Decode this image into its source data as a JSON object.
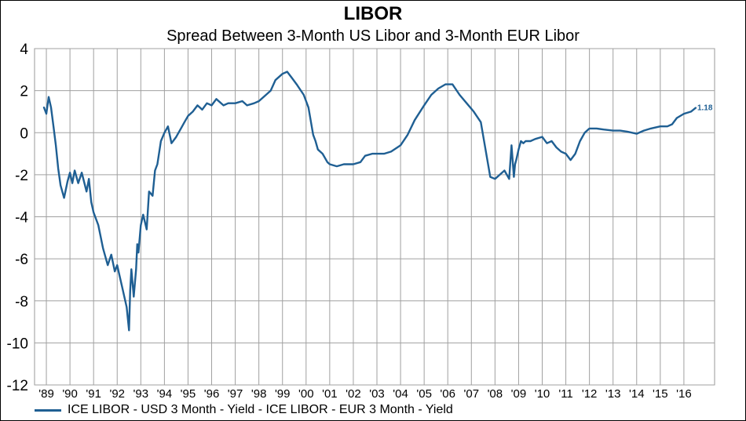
{
  "chart_data": {
    "type": "line",
    "title": "LIBOR",
    "subtitle": "Spread Between 3-Month US Libor and 3-Month EUR Libor",
    "xlabel": "",
    "ylabel": "",
    "ylim": [
      -12,
      4
    ],
    "yticks": [
      4,
      2,
      0,
      -2,
      -4,
      -6,
      -8,
      -10,
      -12
    ],
    "xlim": [
      1988.5,
      2017.3
    ],
    "xticks": [
      {
        "x": 1989,
        "label": "'89"
      },
      {
        "x": 1990,
        "label": "'90"
      },
      {
        "x": 1991,
        "label": "'91"
      },
      {
        "x": 1992,
        "label": "'92"
      },
      {
        "x": 1993,
        "label": "'93"
      },
      {
        "x": 1994,
        "label": "'94"
      },
      {
        "x": 1995,
        "label": "'95"
      },
      {
        "x": 1996,
        "label": "'96"
      },
      {
        "x": 1997,
        "label": "'97"
      },
      {
        "x": 1998,
        "label": "'98"
      },
      {
        "x": 1999,
        "label": "'99"
      },
      {
        "x": 2000,
        "label": "'00"
      },
      {
        "x": 2001,
        "label": "'01"
      },
      {
        "x": 2002,
        "label": "'02"
      },
      {
        "x": 2003,
        "label": "'03"
      },
      {
        "x": 2004,
        "label": "'04"
      },
      {
        "x": 2005,
        "label": "'05"
      },
      {
        "x": 2006,
        "label": "'06"
      },
      {
        "x": 2007,
        "label": "'07"
      },
      {
        "x": 2008,
        "label": "'08"
      },
      {
        "x": 2009,
        "label": "'09"
      },
      {
        "x": 2010,
        "label": "'10"
      },
      {
        "x": 2011,
        "label": "'11"
      },
      {
        "x": 2012,
        "label": "'12"
      },
      {
        "x": 2013,
        "label": "'13"
      },
      {
        "x": 2014,
        "label": "'14"
      },
      {
        "x": 2015,
        "label": "'15"
      },
      {
        "x": 2016,
        "label": "'16"
      }
    ],
    "grid": true,
    "legend_position": "bottom-left",
    "series": [
      {
        "name": "ICE LIBOR - USD 3 Month - Yield - ICE LIBOR - EUR 3 Month - Yield",
        "color": "#1F5F93",
        "last_value_label": "1.18",
        "x": [
          1988.9,
          1989.0,
          1989.1,
          1989.2,
          1989.3,
          1989.4,
          1989.5,
          1989.6,
          1989.75,
          1989.9,
          1990.0,
          1990.1,
          1990.2,
          1990.35,
          1990.5,
          1990.7,
          1990.8,
          1990.9,
          1991.0,
          1991.2,
          1991.4,
          1991.6,
          1991.75,
          1991.9,
          1992.0,
          1992.2,
          1992.4,
          1992.5,
          1992.55,
          1992.6,
          1992.7,
          1992.8,
          1992.85,
          1992.9,
          1993.0,
          1993.1,
          1993.25,
          1993.35,
          1993.5,
          1993.6,
          1993.7,
          1993.85,
          1994.0,
          1994.15,
          1994.3,
          1994.5,
          1994.7,
          1994.85,
          1995.0,
          1995.2,
          1995.4,
          1995.6,
          1995.8,
          1996.0,
          1996.2,
          1996.5,
          1996.7,
          1997.0,
          1997.3,
          1997.5,
          1997.8,
          1998.0,
          1998.3,
          1998.5,
          1998.7,
          1999.0,
          1999.2,
          1999.4,
          1999.6,
          1999.9,
          2000.1,
          2000.3,
          2000.4,
          2000.5,
          2000.7,
          2000.9,
          2001.0,
          2001.3,
          2001.6,
          2002.0,
          2002.3,
          2002.5,
          2002.8,
          2003.0,
          2003.3,
          2003.6,
          2004.0,
          2004.3,
          2004.6,
          2005.0,
          2005.3,
          2005.6,
          2005.9,
          2006.2,
          2006.5,
          2006.8,
          2007.1,
          2007.4,
          2007.6,
          2007.8,
          2008.0,
          2008.2,
          2008.4,
          2008.6,
          2008.7,
          2008.8,
          2008.85,
          2008.9,
          2009.0,
          2009.1,
          2009.2,
          2009.3,
          2009.5,
          2009.7,
          2010.0,
          2010.2,
          2010.4,
          2010.6,
          2010.8,
          2011.0,
          2011.2,
          2011.4,
          2011.6,
          2011.8,
          2012.0,
          2012.3,
          2012.6,
          2013.0,
          2013.3,
          2013.6,
          2014.0,
          2014.3,
          2014.6,
          2015.0,
          2015.3,
          2015.5,
          2015.7,
          2016.0,
          2016.3,
          2016.5
        ],
        "y": [
          1.2,
          0.9,
          1.7,
          1.2,
          0.3,
          -0.6,
          -1.7,
          -2.5,
          -3.1,
          -2.3,
          -1.9,
          -2.4,
          -1.8,
          -2.4,
          -1.9,
          -2.8,
          -2.2,
          -3.3,
          -3.8,
          -4.4,
          -5.5,
          -6.3,
          -5.8,
          -6.6,
          -6.3,
          -7.3,
          -8.3,
          -9.4,
          -7.5,
          -6.5,
          -7.8,
          -6.5,
          -5.3,
          -5.7,
          -4.4,
          -3.9,
          -4.6,
          -2.8,
          -3.0,
          -1.8,
          -1.5,
          -0.4,
          0.0,
          0.3,
          -0.5,
          -0.2,
          0.2,
          0.5,
          0.8,
          1.0,
          1.3,
          1.1,
          1.4,
          1.3,
          1.6,
          1.3,
          1.4,
          1.4,
          1.5,
          1.3,
          1.4,
          1.5,
          1.8,
          2.0,
          2.5,
          2.8,
          2.9,
          2.6,
          2.3,
          1.8,
          1.2,
          -0.1,
          -0.4,
          -0.8,
          -1.0,
          -1.4,
          -1.5,
          -1.6,
          -1.5,
          -1.5,
          -1.4,
          -1.1,
          -1.0,
          -1.0,
          -1.0,
          -0.9,
          -0.6,
          -0.1,
          0.6,
          1.3,
          1.8,
          2.1,
          2.3,
          2.3,
          1.8,
          1.4,
          1.0,
          0.5,
          -0.8,
          -2.1,
          -2.2,
          -2.0,
          -1.8,
          -2.2,
          -0.6,
          -2.1,
          -1.5,
          -1.3,
          -0.8,
          -0.4,
          -0.5,
          -0.4,
          -0.4,
          -0.3,
          -0.2,
          -0.5,
          -0.4,
          -0.7,
          -0.9,
          -1.0,
          -1.3,
          -1.0,
          -0.4,
          0.0,
          0.2,
          0.2,
          0.15,
          0.1,
          0.1,
          0.05,
          -0.05,
          0.1,
          0.2,
          0.3,
          0.3,
          0.4,
          0.7,
          0.9,
          1.0,
          1.18
        ]
      }
    ]
  },
  "legend": {
    "label": "ICE LIBOR - USD 3 Month - Yield - ICE LIBOR - EUR 3 Month - Yield"
  }
}
